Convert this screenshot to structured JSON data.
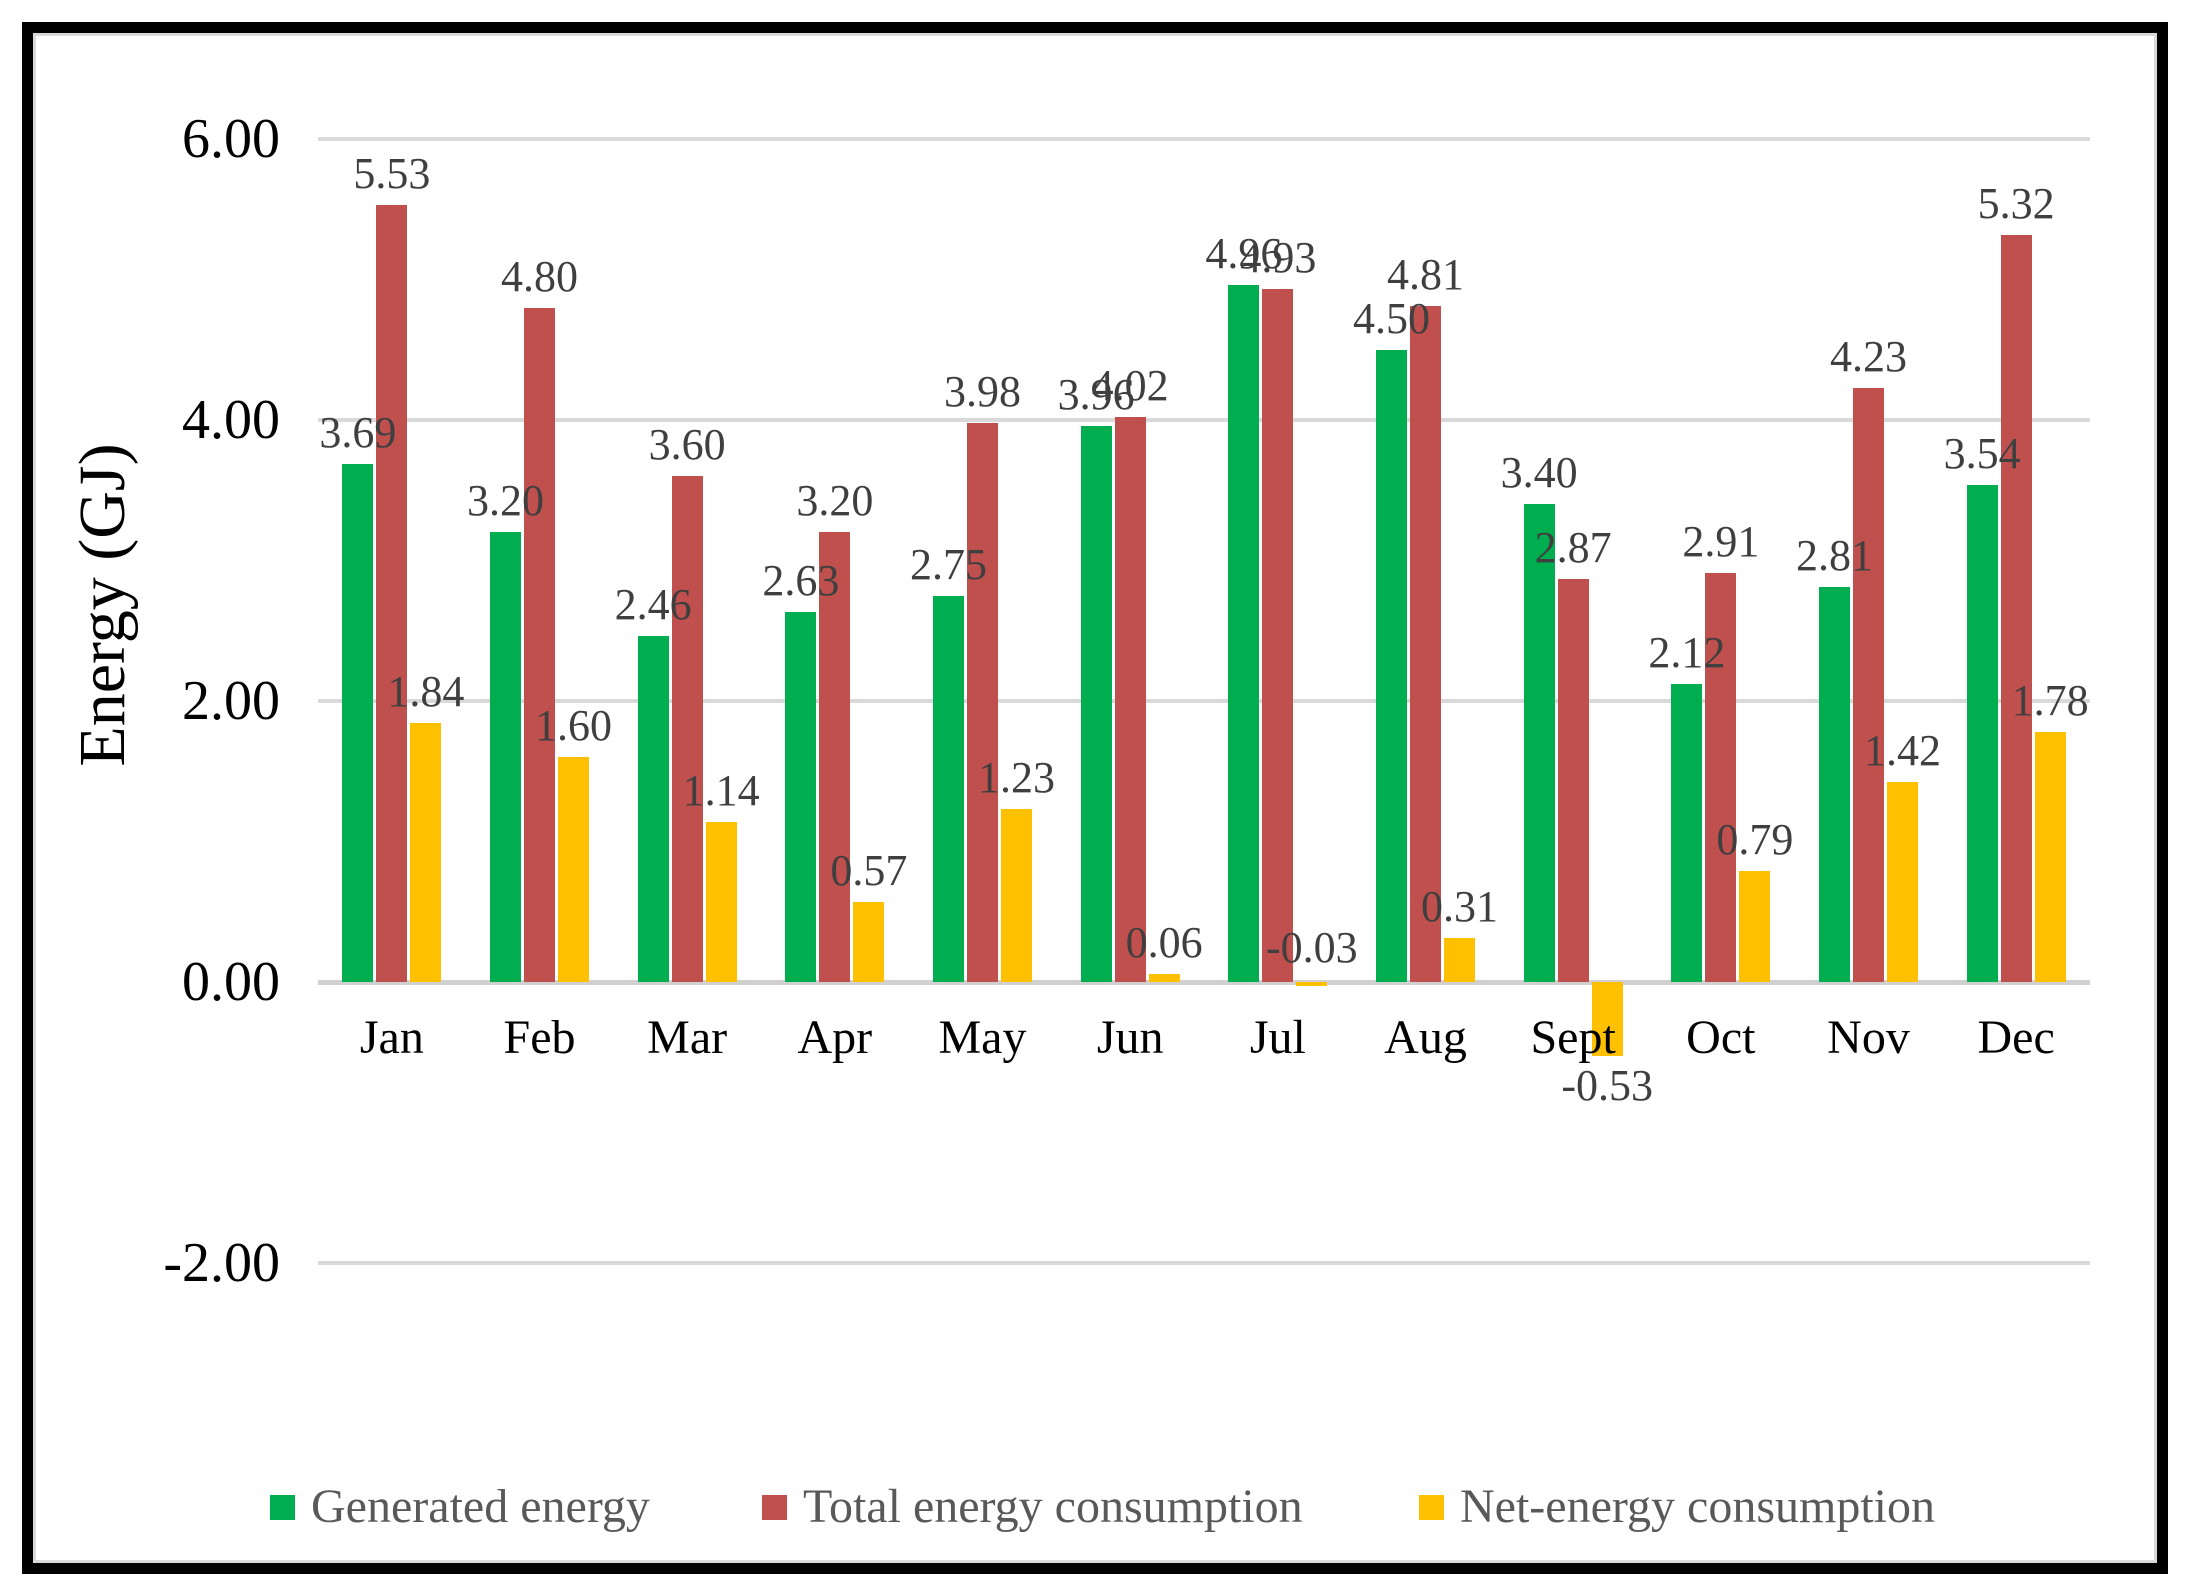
{
  "chart_data": {
    "type": "bar",
    "title": "",
    "xlabel": "",
    "ylabel": "Energy (GJ)",
    "categories": [
      "Jan",
      "Feb",
      "Mar",
      "Apr",
      "May",
      "Jun",
      "Jul",
      "Aug",
      "Sept",
      "Oct",
      "Nov",
      "Dec"
    ],
    "series": [
      {
        "name": "Generated energy",
        "color": "#00AE50",
        "values": [
          3.69,
          3.2,
          2.46,
          2.63,
          2.75,
          3.96,
          4.96,
          4.5,
          3.4,
          2.12,
          2.81,
          3.54
        ]
      },
      {
        "name": "Total energy consumption",
        "color": "#C0504D",
        "values": [
          5.53,
          4.8,
          3.6,
          3.2,
          3.98,
          4.02,
          4.93,
          4.81,
          2.87,
          2.91,
          4.23,
          5.32
        ]
      },
      {
        "name": "Net-energy consumption",
        "color": "#FFC000",
        "values": [
          1.84,
          1.6,
          1.14,
          0.57,
          1.23,
          0.06,
          -0.03,
          0.31,
          -0.53,
          0.79,
          1.42,
          1.78
        ]
      }
    ],
    "y_ticks": [
      6,
      4,
      2,
      0,
      -2
    ],
    "ylim": [
      -2,
      6
    ],
    "value_label_decimals": 2,
    "grid": true,
    "legend_position": "bottom"
  },
  "colors": {
    "gridline": "#D9D9D9",
    "zero_axis": "#D0D0D0",
    "value_label": "#3F3F3F",
    "tick_label": "#000000",
    "legend_text": "#595959",
    "border": "#000000"
  }
}
